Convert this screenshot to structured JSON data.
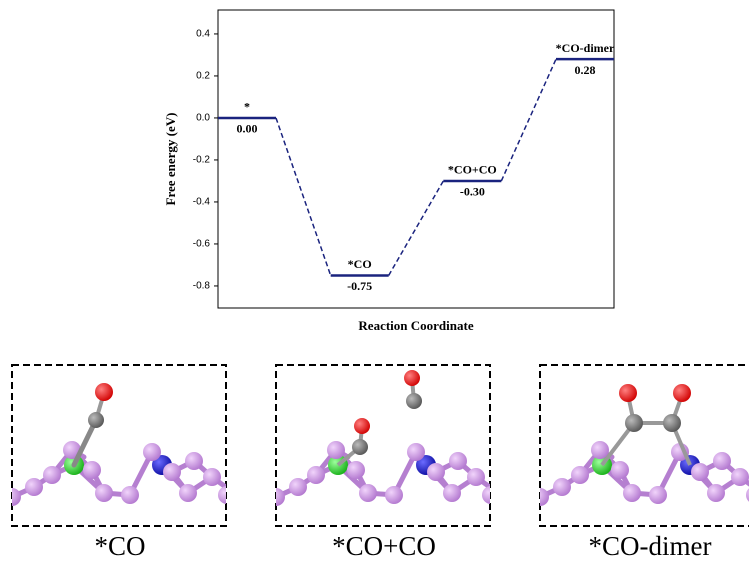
{
  "chart_data": {
    "type": "energy-levels",
    "ylabel": "Free energy (eV)",
    "xlabel": "Reaction Coordinate",
    "categories": [
      "*",
      "*CO",
      "*CO+CO",
      "*CO-dimer"
    ],
    "values": [
      0.0,
      -0.75,
      -0.3,
      0.28
    ],
    "value_labels": [
      "0.00",
      "-0.75",
      "-0.30",
      "0.28"
    ],
    "color": "#1a237e",
    "ylim": [
      -0.905,
      0.514
    ],
    "yticks": [
      0.4,
      0.2,
      {
        "value": 0,
        "label": "0.0"
      },
      -0.2,
      -0.4,
      -0.6,
      -0.8
    ]
  },
  "panels": [
    {
      "caption": "*CO"
    },
    {
      "caption": "*CO+CO"
    },
    {
      "caption": "*CO-dimer"
    }
  ]
}
